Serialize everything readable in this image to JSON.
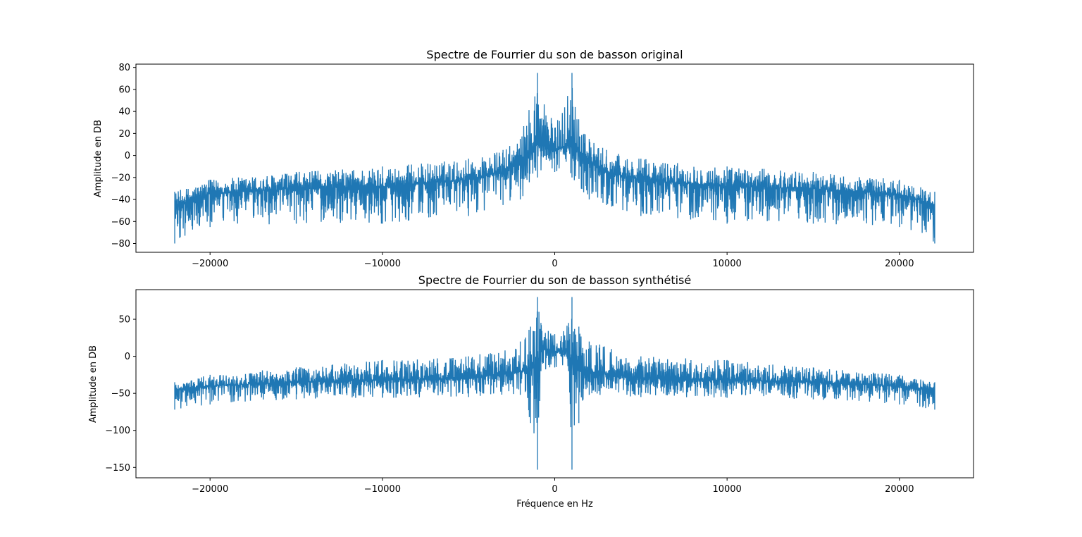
{
  "chart_data": [
    {
      "type": "line",
      "title": "Spectre de Fourrier du son de basson original",
      "xlabel": "",
      "ylabel": "Amplitude en DB",
      "xlim": [
        -24300,
        24300
      ],
      "ylim": [
        -88,
        83
      ],
      "x_ticks": [
        -20000,
        -10000,
        0,
        10000,
        20000
      ],
      "x_tick_labels": [
        "−20000",
        "−10000",
        "0",
        "10000",
        "20000"
      ],
      "y_ticks": [
        80,
        60,
        40,
        20,
        0,
        -20,
        -40,
        -60,
        -80
      ],
      "y_tick_labels": [
        "80",
        "60",
        "40",
        "20",
        "0",
        "−20",
        "−40",
        "−60",
        "−80"
      ],
      "grid": false,
      "color": "#1f77b4",
      "x_range": [
        -22050,
        22050
      ],
      "envelope_x": [
        -22050,
        -20000,
        -15000,
        -10000,
        -5000,
        -3000,
        -2000,
        -1000,
        0,
        1000,
        2000,
        3000,
        5000,
        10000,
        15000,
        20000,
        22050
      ],
      "envelope_upper": [
        -33,
        -22,
        -15,
        -10,
        -3,
        5,
        15,
        75,
        25,
        75,
        15,
        5,
        -3,
        -10,
        -15,
        -22,
        -33
      ],
      "envelope_center": [
        -45,
        -35,
        -30,
        -28,
        -22,
        -15,
        -5,
        10,
        5,
        10,
        -5,
        -15,
        -22,
        -28,
        -30,
        -35,
        -45
      ],
      "envelope_lower": [
        -80,
        -65,
        -62,
        -62,
        -55,
        -45,
        -40,
        -20,
        -15,
        -20,
        -40,
        -45,
        -55,
        -62,
        -62,
        -65,
        -80
      ]
    },
    {
      "type": "line",
      "title": "Spectre de Fourrier du son de basson synthétisé",
      "xlabel": "Fréquence en Hz",
      "ylabel": "Amplitude en DB",
      "xlim": [
        -24300,
        24300
      ],
      "ylim": [
        -164,
        90
      ],
      "x_ticks": [
        -20000,
        -10000,
        0,
        10000,
        20000
      ],
      "x_tick_labels": [
        "−20000",
        "−10000",
        "0",
        "10000",
        "20000"
      ],
      "y_ticks": [
        50,
        0,
        -50,
        -100,
        -150
      ],
      "y_tick_labels": [
        "50",
        "0",
        "−50",
        "−100",
        "−150"
      ],
      "grid": false,
      "color": "#1f77b4",
      "x_range": [
        -22050,
        22050
      ],
      "envelope_x": [
        -22050,
        -20000,
        -15000,
        -10000,
        -5000,
        -2000,
        -1400,
        -1000,
        -800,
        0,
        800,
        1000,
        1400,
        2000,
        5000,
        10000,
        15000,
        20000,
        22050
      ],
      "envelope_upper": [
        -35,
        -25,
        -15,
        -5,
        0,
        20,
        40,
        80,
        45,
        30,
        45,
        80,
        40,
        20,
        0,
        -5,
        -15,
        -25,
        -35
      ],
      "envelope_center": [
        -45,
        -40,
        -35,
        -32,
        -30,
        -20,
        -20,
        -10,
        10,
        5,
        10,
        -10,
        -20,
        -20,
        -30,
        -32,
        -35,
        -40,
        -45
      ],
      "envelope_lower": [
        -72,
        -65,
        -58,
        -56,
        -55,
        -52,
        -90,
        -153,
        -20,
        -15,
        -20,
        -153,
        -90,
        -52,
        -55,
        -56,
        -58,
        -65,
        -72
      ]
    }
  ]
}
